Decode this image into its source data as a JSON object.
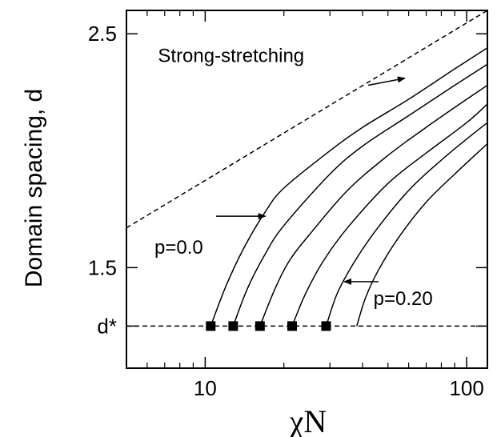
{
  "chart_data": {
    "type": "line",
    "title": "",
    "xlabel": "χN",
    "ylabel": "Domain spacing, d",
    "xscale": "log",
    "xlim": [
      5,
      120
    ],
    "ylim": [
      1.07,
      2.6
    ],
    "grid": false,
    "legend": "none",
    "x_ticks": [
      {
        "value": 10,
        "label": "10"
      },
      {
        "value": 100,
        "label": "100"
      }
    ],
    "x_minor_ticks": [
      6,
      7,
      8,
      9,
      20,
      30,
      40,
      50,
      60,
      70,
      80,
      90
    ],
    "y_ticks": [
      {
        "value": 1.25,
        "label": "d*"
      },
      {
        "value": 1.5,
        "label": "1.5"
      },
      {
        "value": 2.5,
        "label": "2.5"
      }
    ],
    "reference_lines": [
      {
        "name": "strong-stretching",
        "style": "dashed",
        "points": [
          [
            5,
            1.67
          ],
          [
            120,
            2.6
          ]
        ]
      },
      {
        "name": "d-star",
        "style": "dashed",
        "points": [
          [
            5,
            1.25
          ],
          [
            120,
            1.25
          ]
        ]
      }
    ],
    "series": [
      {
        "points": [
          [
            10.5,
            1.25
          ],
          [
            12,
            1.42
          ],
          [
            14,
            1.58
          ],
          [
            17,
            1.74
          ],
          [
            20,
            1.84
          ],
          [
            30,
            2.0
          ],
          [
            40,
            2.1
          ],
          [
            60,
            2.22
          ],
          [
            90,
            2.35
          ],
          [
            120,
            2.44
          ]
        ]
      },
      {
        "points": [
          [
            12.8,
            1.25
          ],
          [
            14.5,
            1.41
          ],
          [
            17,
            1.56
          ],
          [
            20,
            1.68
          ],
          [
            30,
            1.9
          ],
          [
            40,
            2.02
          ],
          [
            60,
            2.15
          ],
          [
            90,
            2.28
          ],
          [
            120,
            2.37
          ]
        ]
      },
      {
        "points": [
          [
            16.2,
            1.25
          ],
          [
            18.5,
            1.41
          ],
          [
            21,
            1.53
          ],
          [
            25,
            1.64
          ],
          [
            35,
            1.83
          ],
          [
            50,
            1.98
          ],
          [
            70,
            2.1
          ],
          [
            100,
            2.22
          ],
          [
            120,
            2.28
          ]
        ]
      },
      {
        "points": [
          [
            21.5,
            1.25
          ],
          [
            24,
            1.38
          ],
          [
            28,
            1.52
          ],
          [
            35,
            1.67
          ],
          [
            50,
            1.86
          ],
          [
            70,
            1.99
          ],
          [
            100,
            2.12
          ],
          [
            120,
            2.2
          ]
        ]
      },
      {
        "points": [
          [
            29,
            1.25
          ],
          [
            32,
            1.39
          ],
          [
            37,
            1.52
          ],
          [
            45,
            1.66
          ],
          [
            60,
            1.83
          ],
          [
            80,
            1.96
          ],
          [
            100,
            2.05
          ],
          [
            120,
            2.12
          ]
        ]
      },
      {
        "points": [
          [
            38,
            1.25
          ],
          [
            41,
            1.37
          ],
          [
            46,
            1.49
          ],
          [
            55,
            1.63
          ],
          [
            70,
            1.78
          ],
          [
            90,
            1.9
          ],
          [
            120,
            2.03
          ]
        ]
      }
    ],
    "markers": [
      {
        "x": 10.5,
        "y": 1.25
      },
      {
        "x": 12.8,
        "y": 1.25
      },
      {
        "x": 16.2,
        "y": 1.25
      },
      {
        "x": 21.5,
        "y": 1.25
      },
      {
        "x": 29,
        "y": 1.25
      }
    ],
    "annotations": [
      {
        "text": "Strong-stretching",
        "anchor": "left",
        "x": 6.6,
        "y": 2.38,
        "arrow_from": [
          42,
          2.28
        ],
        "arrow_to": [
          58,
          2.31
        ]
      },
      {
        "text": "p=0.0",
        "anchor": "left",
        "x": 6.4,
        "y": 1.56,
        "arrow_from": [
          11,
          1.72
        ],
        "arrow_to": [
          17,
          1.72
        ]
      },
      {
        "text": "p=0.20",
        "anchor": "left",
        "x": 44,
        "y": 1.34,
        "arrow_from": [
          46,
          1.44
        ],
        "arrow_to": [
          34,
          1.44
        ]
      }
    ]
  }
}
